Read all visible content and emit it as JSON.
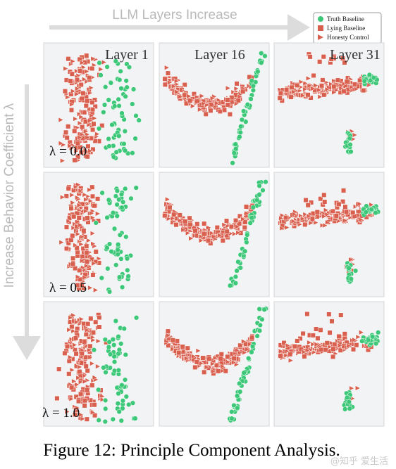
{
  "figure": {
    "top_arrow_label": "LLM Layers Increase",
    "left_arrow_label": "Increase Behavior Coefficient λ",
    "caption": "Figure 12: Principle Component Analysis.",
    "watermark": "@知乎 爱生活"
  },
  "legend": [
    {
      "name": "Truth Baseline",
      "marker": "circle",
      "color": "#3cc878"
    },
    {
      "name": "Lying Baseline",
      "marker": "square",
      "color": "#d9604f"
    },
    {
      "name": "Honesty Control",
      "marker": "triangle",
      "color": "#d9604f"
    }
  ],
  "layers": [
    "Layer 1",
    "Layer 16",
    "Layer 31"
  ],
  "lambdas": [
    "λ = 0.0",
    "λ = 0.5",
    "λ = 1.0"
  ],
  "chart_data": {
    "type": "scatter",
    "title": "",
    "series": [
      {
        "name": "Truth Baseline",
        "marker": "circle",
        "color": "#3cc878"
      },
      {
        "name": "Lying Baseline",
        "marker": "square",
        "color": "#d9604f"
      },
      {
        "name": "Honesty Control",
        "marker": "triangle",
        "color": "#d9604f"
      }
    ],
    "panels": [
      {
        "layer": "Layer 1",
        "lambda": "λ = 0.0",
        "shape": "l1"
      },
      {
        "layer": "Layer 16",
        "lambda": "λ = 0.0",
        "shape": "l16"
      },
      {
        "layer": "Layer 31",
        "lambda": "λ = 0.0",
        "shape": "l31"
      },
      {
        "layer": "Layer 1",
        "lambda": "λ = 0.5",
        "shape": "l1"
      },
      {
        "layer": "Layer 16",
        "lambda": "λ = 0.5",
        "shape": "l16"
      },
      {
        "layer": "Layer 31",
        "lambda": "λ = 0.5",
        "shape": "l31"
      },
      {
        "layer": "Layer 1",
        "lambda": "λ = 1.0",
        "shape": "l1"
      },
      {
        "layer": "Layer 16",
        "lambda": "λ = 1.0",
        "shape": "l16"
      },
      {
        "layer": "Layer 31",
        "lambda": "λ = 1.0",
        "shape": "l31"
      }
    ],
    "axes": "no ticks, no grid",
    "legend_placement": "top-right"
  }
}
